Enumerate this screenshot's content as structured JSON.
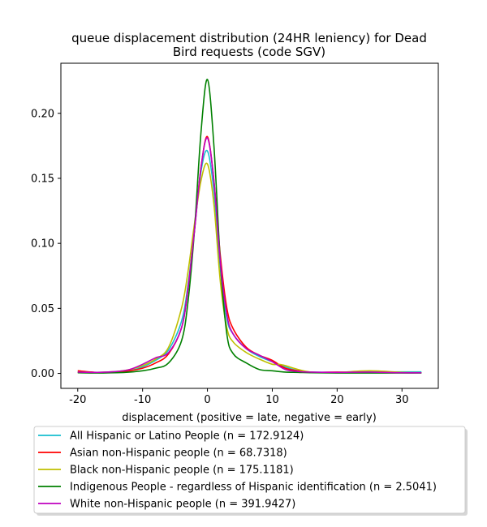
{
  "chart_data": {
    "type": "line",
    "title_lines": [
      "queue displacement distribution (24HR leniency) for Dead",
      "Bird  requests (code SGV)"
    ],
    "xlabel": "displacement (positive = late, negative = early)",
    "ylabel": "",
    "xlim": [
      -22.6,
      35.6
    ],
    "ylim": [
      -0.0115,
      0.2385
    ],
    "xticks": [
      -20,
      -10,
      0,
      10,
      20,
      30
    ],
    "yticks": [
      0.0,
      0.05,
      0.1,
      0.15,
      0.2
    ],
    "ytick_labels": [
      "0.00",
      "0.05",
      "0.10",
      "0.15",
      "0.20"
    ],
    "grid": false,
    "legend_position": "below-plot",
    "series": [
      {
        "name": "All Hispanic or Latino People (n = 172.9124)",
        "color": "#17becf",
        "points": [
          [
            -20,
            0.001
          ],
          [
            -17,
            0.0008
          ],
          [
            -14,
            0.0012
          ],
          [
            -12,
            0.002
          ],
          [
            -10,
            0.005
          ],
          [
            -8,
            0.01
          ],
          [
            -6,
            0.018
          ],
          [
            -4,
            0.04
          ],
          [
            -3,
            0.068
          ],
          [
            -2,
            0.11
          ],
          [
            -1,
            0.155
          ],
          [
            0,
            0.171
          ],
          [
            1,
            0.14
          ],
          [
            2,
            0.08
          ],
          [
            3,
            0.042
          ],
          [
            4,
            0.03
          ],
          [
            6,
            0.019
          ],
          [
            8,
            0.013
          ],
          [
            10,
            0.009
          ],
          [
            12,
            0.005
          ],
          [
            14,
            0.002
          ],
          [
            16,
            0.001
          ],
          [
            20,
            0.0008
          ],
          [
            25,
            0.001
          ],
          [
            30,
            0.0012
          ],
          [
            33,
            0.0012
          ]
        ]
      },
      {
        "name": "Asian non-Hispanic people (n = 68.7318)",
        "color": "#ff0000",
        "points": [
          [
            -20,
            0.002
          ],
          [
            -17,
            0.0008
          ],
          [
            -14,
            0.001
          ],
          [
            -12,
            0.002
          ],
          [
            -10,
            0.004
          ],
          [
            -8,
            0.008
          ],
          [
            -6,
            0.015
          ],
          [
            -4,
            0.035
          ],
          [
            -3,
            0.065
          ],
          [
            -2,
            0.11
          ],
          [
            -1,
            0.158
          ],
          [
            0,
            0.182
          ],
          [
            1,
            0.148
          ],
          [
            2,
            0.09
          ],
          [
            3,
            0.05
          ],
          [
            4,
            0.034
          ],
          [
            6,
            0.02
          ],
          [
            8,
            0.014
          ],
          [
            10,
            0.01
          ],
          [
            12,
            0.004
          ],
          [
            14,
            0.002
          ],
          [
            16,
            0.0008
          ],
          [
            20,
            0.001
          ],
          [
            25,
            0.0008
          ],
          [
            30,
            0.0005
          ],
          [
            33,
            0.0005
          ]
        ]
      },
      {
        "name": "Black non-Hispanic people (n = 175.1181)",
        "color": "#bfbf00",
        "points": [
          [
            -20,
            0.001
          ],
          [
            -17,
            0.0008
          ],
          [
            -14,
            0.0015
          ],
          [
            -12,
            0.003
          ],
          [
            -10,
            0.006
          ],
          [
            -8,
            0.011
          ],
          [
            -6,
            0.02
          ],
          [
            -4,
            0.05
          ],
          [
            -3,
            0.078
          ],
          [
            -2,
            0.115
          ],
          [
            -1,
            0.148
          ],
          [
            0,
            0.161
          ],
          [
            1,
            0.13
          ],
          [
            2,
            0.07
          ],
          [
            3,
            0.035
          ],
          [
            4,
            0.024
          ],
          [
            6,
            0.016
          ],
          [
            8,
            0.011
          ],
          [
            10,
            0.007
          ],
          [
            11,
            0.007
          ],
          [
            12,
            0.006
          ],
          [
            14,
            0.003
          ],
          [
            16,
            0.001
          ],
          [
            20,
            0.0008
          ],
          [
            25,
            0.002
          ],
          [
            30,
            0.0008
          ],
          [
            33,
            0.0005
          ]
        ]
      },
      {
        "name": "Indigenous People - regardless of Hispanic identification (n = 2.5041)",
        "color": "#008000",
        "points": [
          [
            -20,
            0.0005
          ],
          [
            -17,
            0.0003
          ],
          [
            -14,
            0.0005
          ],
          [
            -12,
            0.001
          ],
          [
            -10,
            0.002
          ],
          [
            -8,
            0.004
          ],
          [
            -6,
            0.008
          ],
          [
            -4,
            0.025
          ],
          [
            -3,
            0.055
          ],
          [
            -2,
            0.11
          ],
          [
            -1,
            0.185
          ],
          [
            0,
            0.226
          ],
          [
            1,
            0.175
          ],
          [
            2,
            0.085
          ],
          [
            3,
            0.03
          ],
          [
            4,
            0.015
          ],
          [
            6,
            0.008
          ],
          [
            8,
            0.003
          ],
          [
            10,
            0.002
          ],
          [
            12,
            0.001
          ],
          [
            14,
            0.0008
          ],
          [
            16,
            0.0005
          ],
          [
            20,
            0.0003
          ],
          [
            25,
            0.0003
          ],
          [
            30,
            0.0003
          ],
          [
            33,
            0.0003
          ]
        ]
      },
      {
        "name": "White non-Hispanic people (n = 391.9427)",
        "color": "#bf00bf",
        "points": [
          [
            -20,
            0.001
          ],
          [
            -17,
            0.0008
          ],
          [
            -14,
            0.0015
          ],
          [
            -12,
            0.003
          ],
          [
            -10,
            0.007
          ],
          [
            -8,
            0.012
          ],
          [
            -6,
            0.016
          ],
          [
            -4,
            0.035
          ],
          [
            -3,
            0.065
          ],
          [
            -2,
            0.11
          ],
          [
            -1,
            0.158
          ],
          [
            0,
            0.181
          ],
          [
            1,
            0.148
          ],
          [
            2,
            0.085
          ],
          [
            3,
            0.045
          ],
          [
            4,
            0.03
          ],
          [
            6,
            0.019
          ],
          [
            8,
            0.014
          ],
          [
            10,
            0.009
          ],
          [
            12,
            0.003
          ],
          [
            14,
            0.0015
          ],
          [
            16,
            0.001
          ],
          [
            20,
            0.0008
          ],
          [
            25,
            0.001
          ],
          [
            30,
            0.0005
          ],
          [
            33,
            0.0005
          ]
        ]
      }
    ]
  }
}
